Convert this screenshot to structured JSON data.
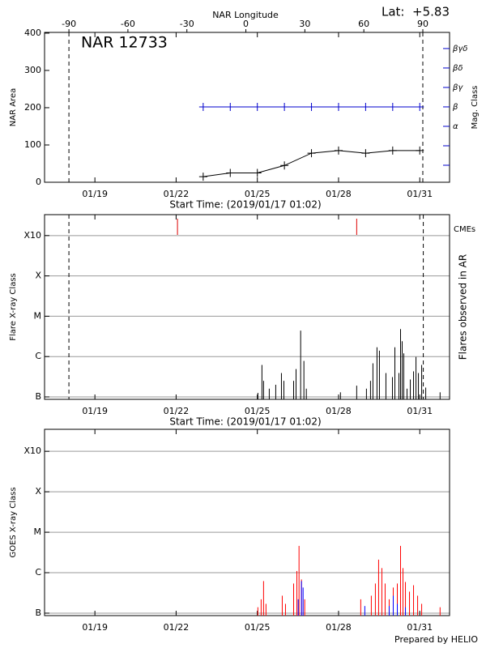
{
  "chart_data": [
    {
      "type": "line",
      "title": "NAR 12733",
      "annotation": "Lat:  +5.83",
      "ylabel": "NAR Area",
      "xlabel": "Start Time: (2019/01/17 01:02)",
      "x2label": "NAR Longitude",
      "y2label": "Mag. Class",
      "xlim": [
        17.14,
        32.1
      ],
      "xticks": [
        {
          "value": 19,
          "label": "01/19"
        },
        {
          "value": 22,
          "label": "01/22"
        },
        {
          "value": 25,
          "label": "01/25"
        },
        {
          "value": 28,
          "label": "01/28"
        },
        {
          "value": 31,
          "label": "01/31"
        }
      ],
      "x2lim": [
        -102.4,
        103.6
      ],
      "x2ticks": [
        -90,
        -60,
        -30,
        0,
        30,
        60,
        90
      ],
      "ylim": [
        0,
        402
      ],
      "yticks": [
        0,
        100,
        200,
        300,
        400
      ],
      "y2lim": [
        -0.875,
        6.83
      ],
      "y2ticks": [
        {
          "value": 0,
          "label": null
        },
        {
          "value": 1,
          "label": null
        },
        {
          "value": 2,
          "label": "α"
        },
        {
          "value": 3,
          "label": "β"
        },
        {
          "value": 4,
          "label": "βγ"
        },
        {
          "value": 5,
          "label": "βδ"
        },
        {
          "value": 6,
          "label": "βγδ"
        }
      ],
      "y2color": "#0000cc",
      "limb_longitudes": [
        -90,
        90
      ],
      "x": [
        23,
        24,
        25,
        26,
        27,
        28,
        29,
        30,
        31
      ],
      "series": [
        {
          "color": "#000000",
          "values": [
            15,
            25,
            25,
            45,
            78,
            85,
            78,
            85,
            85
          ]
        },
        {
          "color": "#0000cc",
          "axis": "y2",
          "values": [
            3,
            3,
            3,
            3,
            3,
            3,
            3,
            3,
            3
          ]
        }
      ]
    },
    {
      "type": "bar",
      "ylabel": "Flare X-ray Class",
      "xlabel": "Start Time: (2019/01/17 01:02)",
      "y2label": "Flares observed in AR",
      "xlim": [
        17.14,
        32.1
      ],
      "xticks": [
        {
          "value": 19,
          "label": "01/19"
        },
        {
          "value": 22,
          "label": "01/22"
        },
        {
          "value": 25,
          "label": "01/25"
        },
        {
          "value": 28,
          "label": "01/28"
        },
        {
          "value": 31,
          "label": "01/31"
        }
      ],
      "log_y": true,
      "grid": true,
      "ylim": [
        8.7e-08,
        0.0033
      ],
      "yticks": [
        {
          "value": 1e-07,
          "label": "B"
        },
        {
          "value": 1e-06,
          "label": "C"
        },
        {
          "value": 1e-05,
          "label": "M"
        },
        {
          "value": 0.0001,
          "label": "X"
        },
        {
          "value": 0.001,
          "label": "X10"
        }
      ],
      "limb_times": [
        18.04,
        31.13
      ],
      "events": {
        "label": "CMEs",
        "color": "#dd0000",
        "x": [
          22.05,
          28.67
        ]
      },
      "series": [
        {
          "color": "#000000",
          "x": [
            25.02,
            25.17,
            25.23,
            25.44,
            25.68,
            25.89,
            25.98,
            26.34,
            26.43,
            26.6,
            26.72,
            26.81,
            28.07,
            28.67,
            29.03,
            29.18,
            29.27,
            29.42,
            29.51,
            29.75,
            29.99,
            30.08,
            30.23,
            30.29,
            30.35,
            30.41,
            30.53,
            30.65,
            30.77,
            30.86,
            30.95,
            31.07,
            31.22,
            31.75
          ],
          "values": [
            1.26e-07,
            6.2e-07,
            2.5e-07,
            1.6e-07,
            2e-07,
            3.9e-07,
            2.5e-07,
            2.5e-07,
            4.9e-07,
            4.4e-06,
            7.8e-07,
            1.6e-07,
            1.3e-07,
            1.9e-07,
            1.6e-07,
            2.5e-07,
            6.8e-07,
            1.7e-06,
            1.4e-06,
            3.9e-07,
            3.1e-07,
            1.7e-06,
            3.9e-07,
            4.8e-06,
            2.4e-06,
            1.2e-06,
            1.6e-07,
            2.7e-07,
            4.3e-07,
            9.8e-07,
            3.9e-07,
            6.2e-07,
            1.7e-07,
            1.3e-07
          ]
        }
      ]
    },
    {
      "type": "bar",
      "ylabel": "GOES X-ray Class",
      "xlim": [
        17.14,
        32.1
      ],
      "xticks": [
        {
          "value": 19,
          "label": "01/19"
        },
        {
          "value": 22,
          "label": "01/22"
        },
        {
          "value": 25,
          "label": "01/25"
        },
        {
          "value": 28,
          "label": "01/28"
        },
        {
          "value": 31,
          "label": "01/31"
        }
      ],
      "log_y": true,
      "grid": true,
      "ylim": [
        8.7e-08,
        0.0035
      ],
      "yticks": [
        {
          "value": 1e-07,
          "label": "B"
        },
        {
          "value": 1e-06,
          "label": "C"
        },
        {
          "value": 1e-05,
          "label": "M"
        },
        {
          "value": 0.0001,
          "label": "X"
        },
        {
          "value": 0.001,
          "label": "X10"
        }
      ],
      "series": [
        {
          "color": "#ff0000",
          "x": [
            25.02,
            25.14,
            25.23,
            25.32,
            25.92,
            26.04,
            26.34,
            26.46,
            26.54,
            26.63,
            26.75,
            28.82,
            29.21,
            29.36,
            29.48,
            29.6,
            29.72,
            29.87,
            30.02,
            30.17,
            30.29,
            30.38,
            30.47,
            30.62,
            30.77,
            30.92,
            31.07,
            31.75
          ],
          "values": [
            1.4e-07,
            2.2e-07,
            6.2e-07,
            1.7e-07,
            2.7e-07,
            1.7e-07,
            5.4e-07,
            1.1e-06,
            4.6e-06,
            6.8e-07,
            2.2e-07,
            2.2e-07,
            2.7e-07,
            5.4e-07,
            2.1e-06,
            1.3e-06,
            5.4e-07,
            2.2e-07,
            4.3e-07,
            5.4e-07,
            4.6e-06,
            1.3e-06,
            5.9e-07,
            3.4e-07,
            4.9e-07,
            2.7e-07,
            1.7e-07,
            1.4e-07
          ]
        },
        {
          "color": "#0000ff",
          "x": [
            26.51,
            26.63,
            26.69,
            28.97,
            29.87,
            30.02,
            30.17,
            30.47
          ],
          "values": [
            2.2e-07,
            6.2e-07,
            4.3e-07,
            1.5e-07,
            1.5e-07,
            2.7e-07,
            1.7e-07,
            1.4e-07
          ]
        }
      ]
    }
  ],
  "footer": "Prepared by HELIO"
}
